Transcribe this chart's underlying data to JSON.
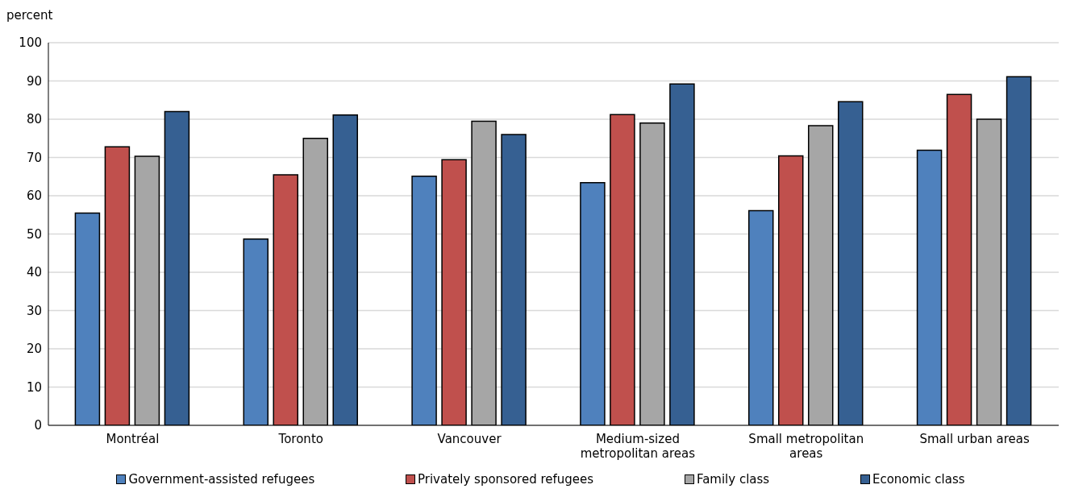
{
  "chart_data": {
    "type": "bar",
    "ylabel": "percent",
    "categories": [
      "Montréal",
      "Toronto",
      "Vancouver",
      "Medium-sized metropolitan areas",
      "Small metropolitan areas",
      "Small urban areas"
    ],
    "series": [
      {
        "name": "Government-assisted refugees",
        "color": "#4f81bd",
        "values": [
          55.5,
          48.7,
          65.1,
          63.4,
          56.1,
          71.9
        ]
      },
      {
        "name": "Privately sponsored refugees",
        "color": "#c0504d",
        "values": [
          72.8,
          65.5,
          69.4,
          81.2,
          70.4,
          86.5
        ]
      },
      {
        "name": "Family class",
        "color": "#a6a6a6",
        "values": [
          70.3,
          75.0,
          79.5,
          79.0,
          78.3,
          80.0
        ]
      },
      {
        "name": "Economic class",
        "color": "#366092",
        "values": [
          82.0,
          81.1,
          76.0,
          89.2,
          84.6,
          91.1
        ]
      }
    ],
    "ylim": [
      0,
      100
    ],
    "yticks": [
      0,
      10,
      20,
      30,
      40,
      50,
      60,
      70,
      80,
      90,
      100
    ],
    "grid": "y",
    "legend": "bottom"
  }
}
